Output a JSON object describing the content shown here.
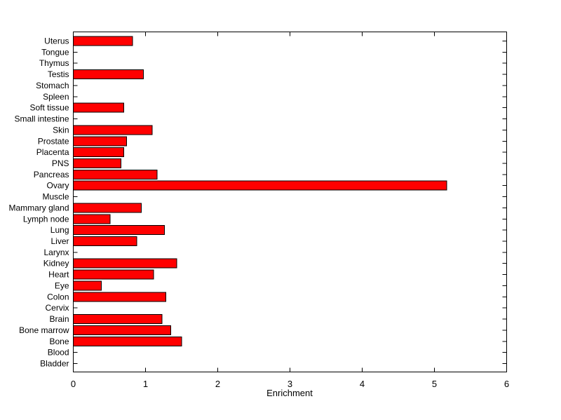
{
  "figure": {
    "background_color": "#FFFFFF",
    "axis_color": "#000000",
    "text_color": "#000000"
  },
  "chart_data": {
    "type": "bar",
    "orientation": "horizontal",
    "title": "",
    "xlabel": "Enrichment",
    "ylabel": "",
    "xlim": [
      0,
      6
    ],
    "xticks": [
      0,
      1,
      2,
      3,
      4,
      5,
      6
    ],
    "grid": false,
    "legend": "none",
    "bar_color": "#FF0000",
    "bar_edge_color": "#000000",
    "category_order": "top-to-bottom",
    "categories": [
      "Uterus",
      "Tongue",
      "Thymus",
      "Testis",
      "Stomach",
      "Spleen",
      "Soft tissue",
      "Small intestine",
      "Skin",
      "Prostate",
      "Placenta",
      "PNS",
      "Pancreas",
      "Ovary",
      "Muscle",
      "Mammary gland",
      "Lymph node",
      "Lung",
      "Liver",
      "Larynx",
      "Kidney",
      "Heart",
      "Eye",
      "Colon",
      "Cervix",
      "Brain",
      "Bone marrow",
      "Bone",
      "Blood",
      "Bladder"
    ],
    "values": [
      0.82,
      0,
      0,
      0.97,
      0,
      0,
      0.7,
      0,
      1.09,
      0.74,
      0.7,
      0.66,
      1.16,
      5.17,
      0,
      0.94,
      0.51,
      1.26,
      0.88,
      0,
      1.43,
      1.11,
      0.39,
      1.28,
      0,
      1.23,
      1.35,
      1.5,
      0,
      0
    ]
  }
}
